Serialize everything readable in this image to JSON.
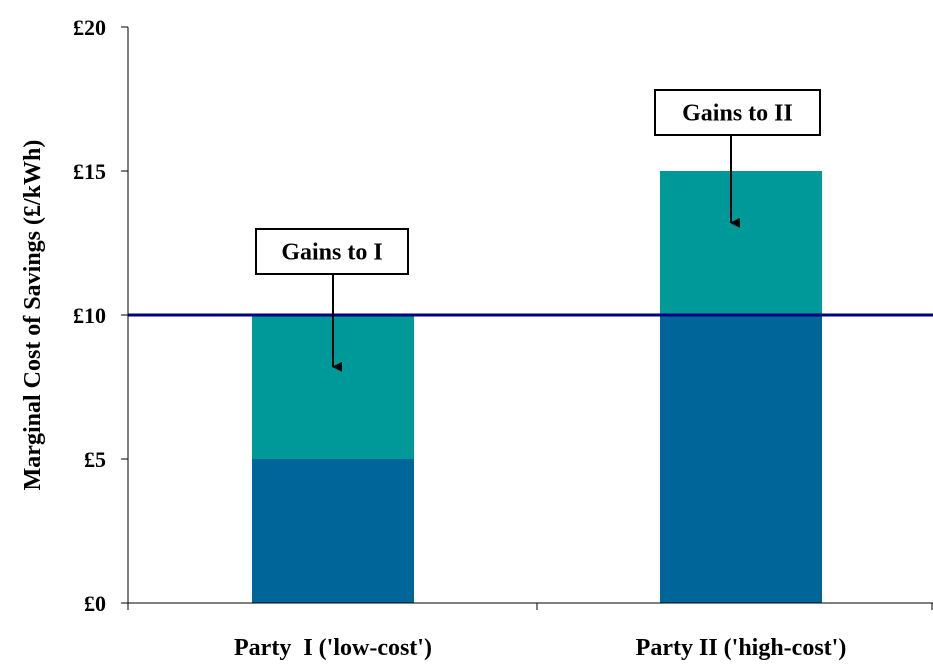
{
  "chart_data": {
    "type": "bar",
    "stacked": true,
    "categories": [
      "Party  I ('low-cost')",
      "Party II ('high-cost')"
    ],
    "series": [
      {
        "values": [
          5,
          10
        ],
        "color": "#006699"
      },
      {
        "values": [
          5,
          5
        ],
        "color": "#009999"
      }
    ],
    "ylabel": "Marginal Cost of Savings (£/kWh)",
    "ylim": [
      0,
      20
    ],
    "yticks": [
      0,
      5,
      10,
      15,
      20
    ],
    "ytick_labels": [
      "£0",
      "£5",
      "£10",
      "£15",
      "£20"
    ],
    "reference_line": {
      "y": 10,
      "color": "#000080"
    },
    "annotations": [
      {
        "text": "Gains to I",
        "category": 0,
        "arrow_to_y": 8.2
      },
      {
        "text": "Gains to II",
        "category": 1,
        "arrow_to_y": 13.2
      }
    ],
    "grid": false,
    "legend": "none"
  }
}
